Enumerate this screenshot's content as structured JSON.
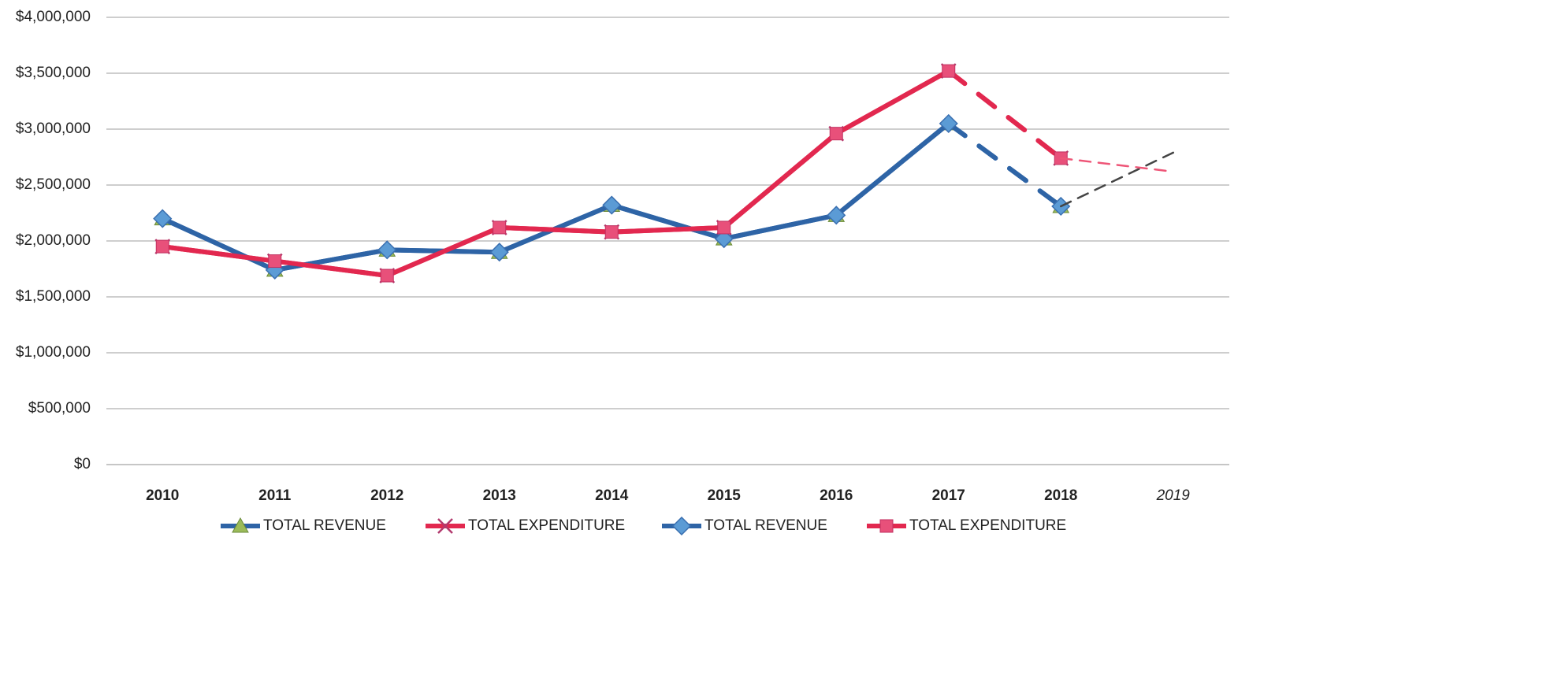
{
  "chart_data": {
    "type": "line",
    "categories": [
      "2010",
      "2011",
      "2012",
      "2013",
      "2014",
      "2015",
      "2016",
      "2017",
      "2018",
      "2019"
    ],
    "ylim": [
      0,
      4000000
    ],
    "yticks": [
      {
        "value": 0,
        "label": "$0"
      },
      {
        "value": 500000,
        "label": "$500,000"
      },
      {
        "value": 1000000,
        "label": "$1,000,000"
      },
      {
        "value": 1500000,
        "label": "$1,500,000"
      },
      {
        "value": 2000000,
        "label": "$2,000,000"
      },
      {
        "value": 2500000,
        "label": "$2,500,000"
      },
      {
        "value": 3000000,
        "label": "$3,000,000"
      },
      {
        "value": 3500000,
        "label": "$3,500,000"
      },
      {
        "value": 4000000,
        "label": "$4,000,000"
      }
    ],
    "grid": true,
    "legend": "bottom",
    "dashed_from": 7,
    "series": [
      {
        "name": "TOTAL REVENUE",
        "color": "#2e64a6",
        "marker": "triangle",
        "marker_color": "#9bbb59",
        "values": [
          2200000,
          1740000,
          1920000,
          1900000,
          2320000,
          2020000,
          2230000,
          3050000,
          2310000,
          null
        ]
      },
      {
        "name": "TOTAL EXPENDITURE",
        "color": "#e2284f",
        "marker": "x",
        "marker_color": "#b23a6e",
        "values": [
          1950000,
          1820000,
          1690000,
          2120000,
          2080000,
          2120000,
          2960000,
          3520000,
          2740000,
          null
        ]
      },
      {
        "name": "TOTAL REVENUE",
        "color": "#2e64a6",
        "marker": "diamond",
        "marker_color": "#5b9bd5",
        "values": [
          2200000,
          1740000,
          1920000,
          1900000,
          2320000,
          2020000,
          2230000,
          3050000,
          2310000,
          null
        ]
      },
      {
        "name": "TOTAL EXPENDITURE",
        "color": "#e2284f",
        "marker": "square",
        "marker_color": "#e8507a",
        "values": [
          1950000,
          1820000,
          1690000,
          2120000,
          2080000,
          2120000,
          2960000,
          3520000,
          2740000,
          null
        ]
      },
      {
        "color": "#444444",
        "handwritten": true,
        "values": [
          null,
          null,
          null,
          null,
          null,
          null,
          null,
          null,
          2310000,
          2790000
        ]
      },
      {
        "color": "#ee5577",
        "handwritten": true,
        "values": [
          null,
          null,
          null,
          null,
          null,
          null,
          null,
          null,
          2740000,
          2620000
        ]
      }
    ]
  }
}
